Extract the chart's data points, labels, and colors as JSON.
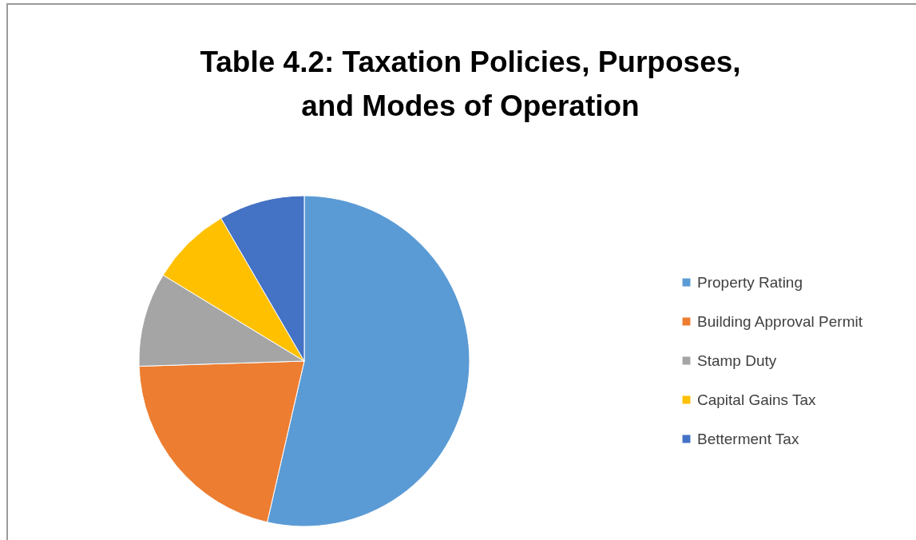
{
  "chart_data": {
    "type": "pie",
    "title": "Table 4.2: Taxation Policies, Purposes, and Modes of Operation",
    "categories": [
      "Property Rating",
      "Building Approval Permit",
      "Stamp Duty",
      "Capital Gains Tax",
      "Betterment Tax"
    ],
    "values": [
      53.6,
      20.9,
      9.2,
      7.9,
      8.4
    ],
    "colors": [
      "#5b9bd5",
      "#ed7d31",
      "#a5a5a5",
      "#ffc000",
      "#4472c4"
    ],
    "legend": "right"
  }
}
